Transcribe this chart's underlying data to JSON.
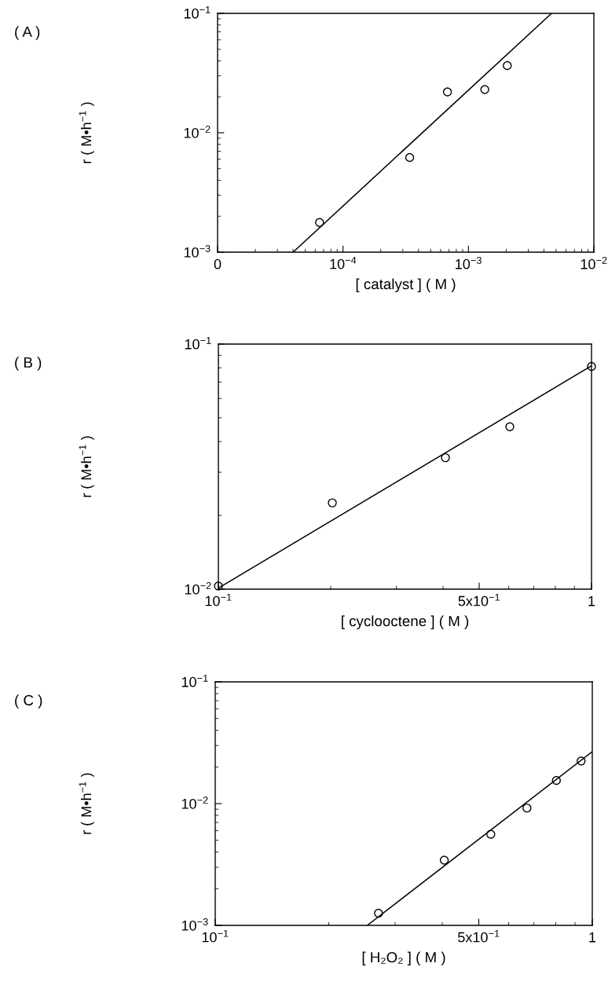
{
  "chart_data": [
    {
      "type": "scatter",
      "annotations": [
        "( A )"
      ],
      "xlabel": "[ catalyst ] ( M )",
      "ylabel": "r ( M•h$^{−1}$ )",
      "log": "xy",
      "xlim": [
        1e-05,
        0.01
      ],
      "xticks": [
        {
          "value": 1e-05,
          "label": "0"
        },
        {
          "value": 0.0001,
          "label": "10$^{−4}$"
        },
        {
          "value": 0.001,
          "label": "10$^{−3}$"
        },
        {
          "value": 0.01,
          "label": "10$^{−2}$"
        }
      ],
      "ylim": [
        0.001,
        0.1
      ],
      "yticks": [
        {
          "value": 0.001,
          "label": "10$^{−3}$"
        },
        {
          "value": 0.01,
          "label": "10$^{−2}$"
        },
        {
          "value": 0.1,
          "label": "10$^{−1}$"
        }
      ],
      "series": [
        {
          "marker": "circle",
          "color": "#000000",
          "x": [
            6.5e-05,
            0.00034,
            0.00068,
            0.00135,
            0.00204
          ],
          "values": [
            0.00177,
            0.0062,
            0.022,
            0.023,
            0.0365
          ]
        },
        {
          "type": "line",
          "color": "#000000",
          "x": [
            4e-05,
            0.0046
          ],
          "values": [
            0.001,
            0.1
          ]
        }
      ]
    },
    {
      "type": "scatter",
      "annotations": [
        "( B )"
      ],
      "xlabel": "[ cyclooctene ] ( M )",
      "ylabel": "r ( M•h$^{−1}$ )",
      "log": "xy",
      "xlim": [
        0.1,
        1
      ],
      "xticks": [
        {
          "value": 0.1,
          "label": "10$^{−1}$"
        },
        {
          "value": 0.5,
          "label": "5x10$^{−1}$"
        },
        1
      ],
      "ylim": [
        0.01,
        0.1
      ],
      "yticks": [
        {
          "value": 0.01,
          "label": "10$^{−2}$"
        },
        {
          "value": 0.1,
          "label": "10$^{−1}$"
        }
      ],
      "series": [
        {
          "marker": "circle",
          "color": "#000000",
          "x": [
            0.1,
            0.202,
            0.406,
            0.604,
            1.0
          ],
          "values": [
            0.0103,
            0.0225,
            0.0344,
            0.046,
            0.081
          ]
        },
        {
          "type": "line",
          "color": "#000000",
          "x": [
            0.1,
            1
          ],
          "values": [
            0.0101,
            0.0815
          ]
        }
      ]
    },
    {
      "type": "scatter",
      "annotations": [
        "( C )"
      ],
      "xlabel": "[ H₂O₂ ] ( M )",
      "ylabel": "r ( M•h$^{−1}$ )",
      "log": "xy",
      "xlim": [
        0.1,
        1
      ],
      "xticks": [
        {
          "value": 0.1,
          "label": "10$^{−1}$"
        },
        {
          "value": 0.5,
          "label": "5x10$^{−1}$"
        },
        1
      ],
      "ylim": [
        0.001,
        0.1
      ],
      "yticks": [
        {
          "value": 0.001,
          "label": "10$^{−3}$"
        },
        {
          "value": 0.01,
          "label": "10$^{−2}$"
        },
        {
          "value": 0.1,
          "label": "10$^{−1}$"
        }
      ],
      "series": [
        {
          "marker": "circle",
          "color": "#000000",
          "x": [
            0.271,
            0.405,
            0.538,
            0.671,
            0.803,
            0.934
          ],
          "values": [
            0.00126,
            0.00343,
            0.0056,
            0.0092,
            0.0155,
            0.0224
          ]
        },
        {
          "type": "line",
          "color": "#000000",
          "x": [
            0.253,
            1
          ],
          "values": [
            0.001,
            0.0267
          ]
        }
      ]
    }
  ]
}
